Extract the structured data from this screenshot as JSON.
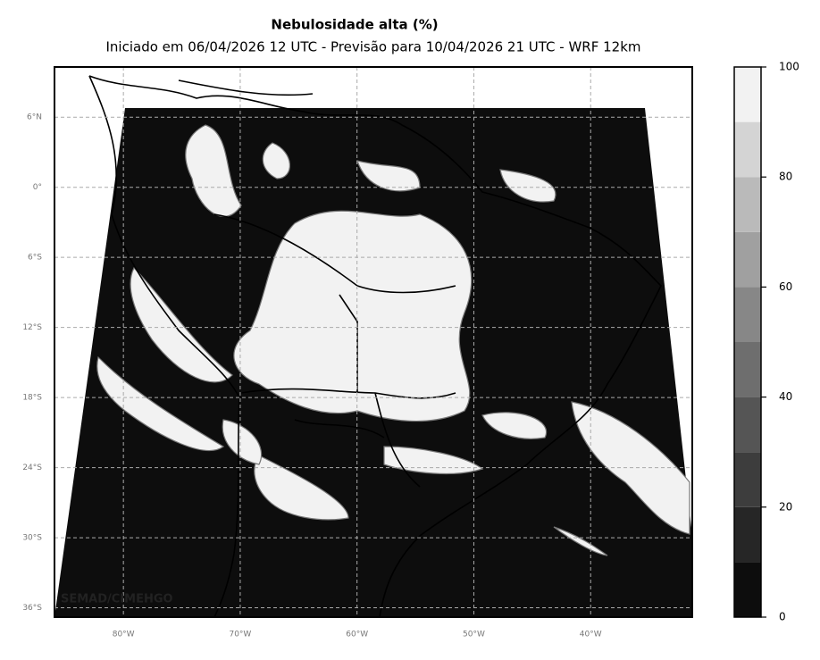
{
  "header": {
    "title": "Nebulosidade alta (%)",
    "subtitle": "Iniciado em 06/04/2026 12 UTC - Previsão para 10/04/2026 21 UTC - WRF 12km"
  },
  "map": {
    "latlim": [
      -36.8,
      10.3
    ],
    "lonlim": [
      -85.9,
      -31.3
    ],
    "lat_ticks": [
      {
        "value": 6,
        "label": "6°N"
      },
      {
        "value": 0,
        "label": "0°"
      },
      {
        "value": -6,
        "label": "6°S"
      },
      {
        "value": -12,
        "label": "12°S"
      },
      {
        "value": -18,
        "label": "18°S"
      },
      {
        "value": -24,
        "label": "24°S"
      },
      {
        "value": -30,
        "label": "30°S"
      },
      {
        "value": -36,
        "label": "36°S"
      }
    ],
    "lon_ticks": [
      {
        "value": -80,
        "label": "80°W"
      },
      {
        "value": -70,
        "label": "70°W"
      },
      {
        "value": -60,
        "label": "60°W"
      },
      {
        "value": -50,
        "label": "50°W"
      },
      {
        "value": -40,
        "label": "40°W"
      }
    ],
    "watermark": "SEMAD/CIMEHGO"
  },
  "colorbar": {
    "lim": [
      0,
      100
    ],
    "ticks": [
      0,
      20,
      40,
      60,
      80,
      100
    ],
    "bounds": [
      0,
      10,
      20,
      30,
      40,
      50,
      60,
      70,
      80,
      90,
      100
    ],
    "colors": [
      "#0d0d0d",
      "#262626",
      "#3d3d3d",
      "#555555",
      "#6e6e6e",
      "#878787",
      "#a0a0a0",
      "#bababa",
      "#d4d4d4",
      "#f2f2f2"
    ]
  }
}
